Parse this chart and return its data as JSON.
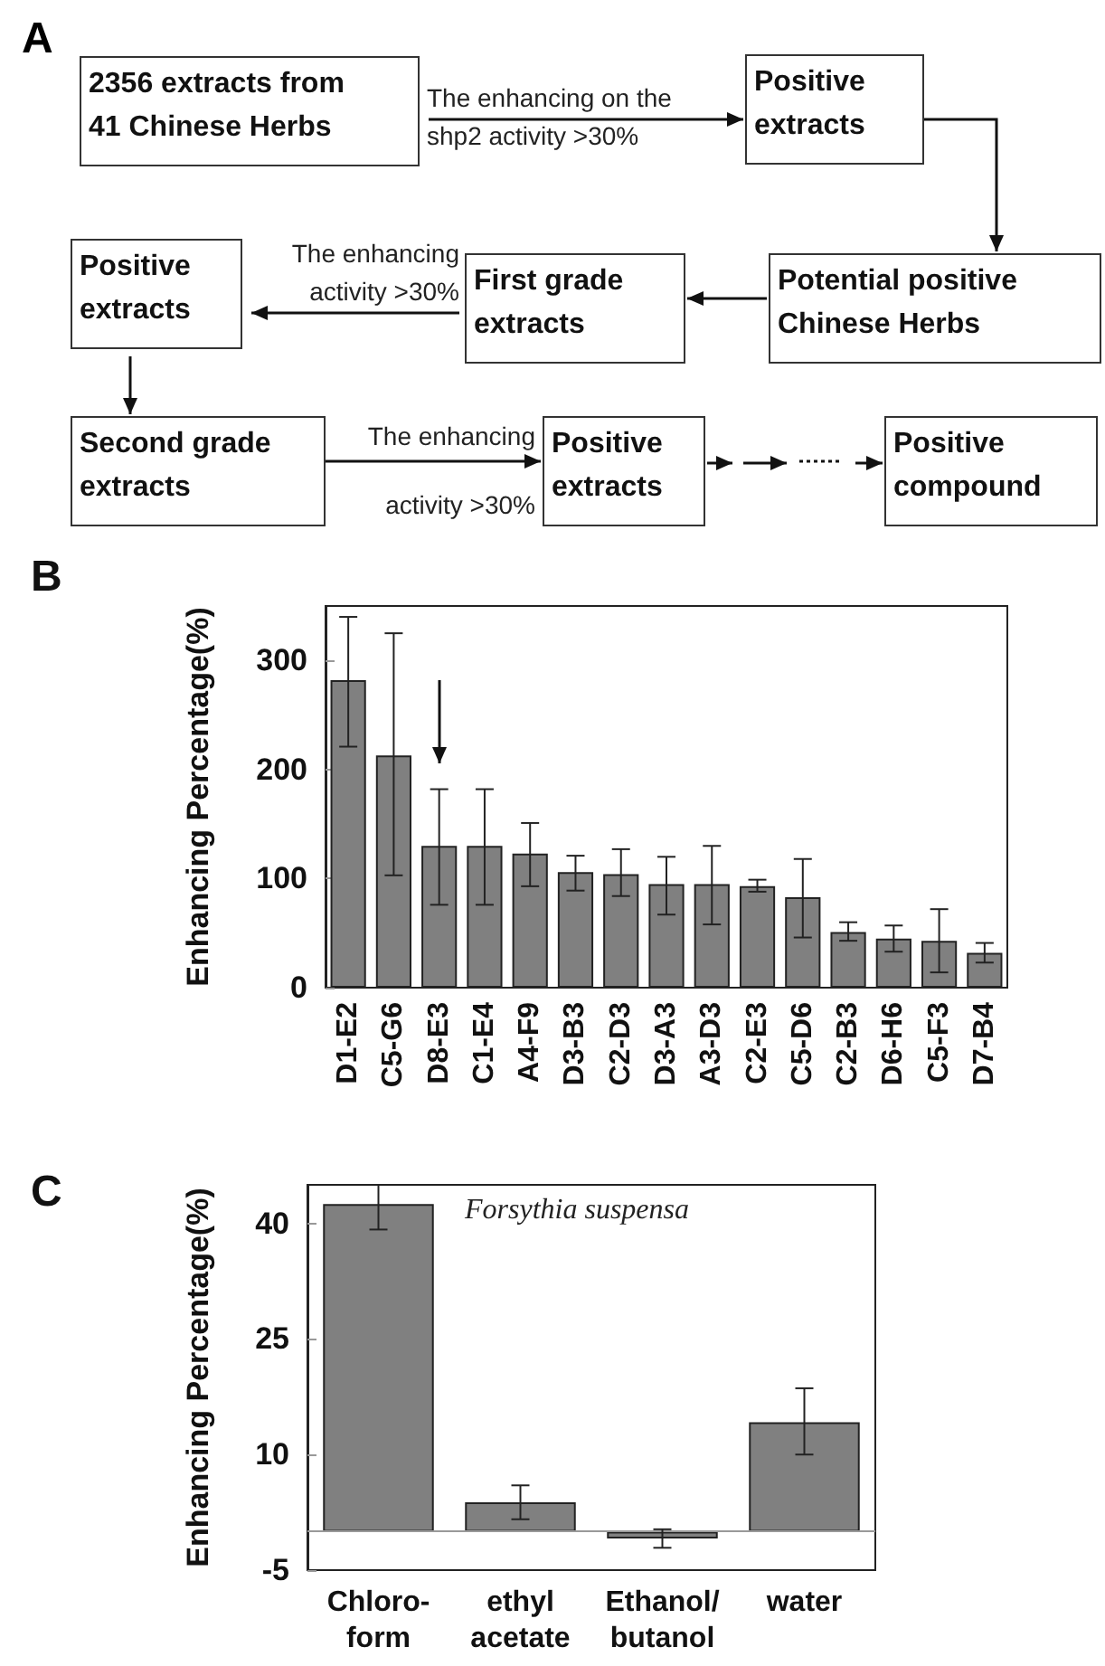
{
  "chart_data": [
    {
      "type": "other",
      "title": "A",
      "annotations": [
        "2356 extracts from\n41 Chinese Herbs",
        "The enhancing on the\nshp2 activity >30%",
        "Positive\nextracts",
        "Potential  positive\nChinese Herbs",
        "First grade\nextracts",
        "The enhancing\nactivity >30%",
        "Positive\nextracts",
        "Second grade\nextracts",
        "The enhancing\nactivity >30%",
        "Positive\nextracts",
        "Positive\ncompound"
      ]
    },
    {
      "type": "bar",
      "title": "B",
      "ylabel": "Enhancing Percentage(%)",
      "color": "#808080",
      "categories": [
        "D1-E2",
        "C5-G6",
        "D8-E3",
        "C1-E4",
        "A4-F9",
        "D3-B3",
        "C2-D3",
        "D3-A3",
        "A3-D3",
        "C2-E3",
        "C5-D6",
        "C2-B3",
        "D6-H6",
        "C5-F3",
        "D7-B4"
      ],
      "values": [
        282,
        213,
        130,
        130,
        123,
        106,
        104,
        95,
        95,
        93,
        83,
        51,
        45,
        43,
        32
      ],
      "errors": [
        [
          221,
          340
        ],
        [
          103,
          325
        ],
        [
          76,
          182
        ],
        [
          76,
          182
        ],
        [
          93,
          151
        ],
        [
          89,
          121
        ],
        [
          84,
          127
        ],
        [
          67,
          120
        ],
        [
          58,
          130
        ],
        [
          88,
          99
        ],
        [
          46,
          118
        ],
        [
          43,
          60
        ],
        [
          33,
          57
        ],
        [
          14,
          72
        ],
        [
          23,
          41
        ]
      ],
      "ylim": [
        0,
        350
      ],
      "yticks": [
        0,
        100,
        200,
        300
      ],
      "grid": false
    },
    {
      "type": "bar",
      "title": "C",
      "ylabel": "Enhancing Percentage(%)",
      "color": "#808080",
      "categories": [
        "Chloro-\nform",
        "ethyl\nacetate",
        "Ethanol/\nbutanol",
        "water"
      ],
      "values": [
        42.5,
        3.8,
        -0.9,
        14.2
      ],
      "errors": [
        [
          39.2,
          45
        ],
        [
          1.6,
          6.0
        ],
        [
          -2.1,
          0.3
        ],
        [
          10.0,
          18.6
        ]
      ],
      "ylim": [
        -5,
        45
      ],
      "yticks": [
        -5,
        10,
        25,
        40
      ],
      "grid": false,
      "ref_lines": [
        {
          "axis": "y",
          "value": 0,
          "color": "#999999"
        }
      ],
      "annotations": [
        "Forsythia suspensa"
      ]
    }
  ]
}
